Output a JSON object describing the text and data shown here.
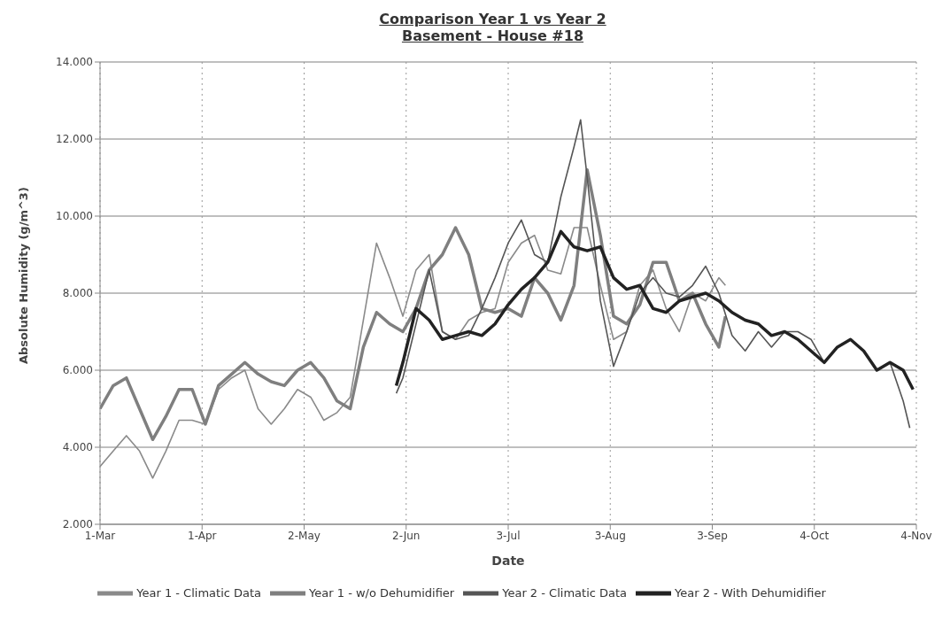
{
  "chart_data": {
    "type": "line",
    "title": "Comparison Year 1 vs Year 2",
    "subtitle": "Basement - House #18",
    "xlabel": "Date",
    "ylabel": "Absolute Humidity (g/m^3)",
    "xlim": [
      "--03-01",
      "--11-04"
    ],
    "xticks": [
      {
        "value": "--03-01",
        "label": "1-Mar"
      },
      {
        "value": "--04-01",
        "label": "1-Apr"
      },
      {
        "value": "--05-02",
        "label": "2-May"
      },
      {
        "value": "--06-02",
        "label": "2-Jun"
      },
      {
        "value": "--07-03",
        "label": "3-Jul"
      },
      {
        "value": "--08-03",
        "label": "3-Aug"
      },
      {
        "value": "--09-03",
        "label": "3-Sep"
      },
      {
        "value": "--10-04",
        "label": "4-Oct"
      },
      {
        "value": "--11-04",
        "label": "4-Nov"
      }
    ],
    "ylim": [
      2,
      14
    ],
    "yticks": [
      {
        "value": 2,
        "label": "2.000"
      },
      {
        "value": 4,
        "label": "4.000"
      },
      {
        "value": 6,
        "label": "6.000"
      },
      {
        "value": 8,
        "label": "8.000"
      },
      {
        "value": 10,
        "label": "10.000"
      },
      {
        "value": 12,
        "label": "12.000"
      },
      {
        "value": 14,
        "label": "14.000"
      }
    ],
    "grid": true,
    "legend": "bottom",
    "marker": "none",
    "line_style": "solid",
    "series": [
      {
        "name": "Year 1 - Climatic Data",
        "color": "#8a8a8a",
        "x": [
          "--03-01",
          "--03-05",
          "--03-09",
          "--03-13",
          "--03-17",
          "--03-21",
          "--03-25",
          "--03-29",
          "--04-02",
          "--04-06",
          "--04-10",
          "--04-14",
          "--04-18",
          "--04-22",
          "--04-26",
          "--04-30",
          "--05-04",
          "--05-08",
          "--05-12",
          "--05-16",
          "--05-20",
          "--05-24",
          "--05-28",
          "--06-01",
          "--06-05",
          "--06-09",
          "--06-13",
          "--06-17",
          "--06-21",
          "--06-25",
          "--06-29",
          "--07-03",
          "--07-07",
          "--07-11",
          "--07-15",
          "--07-19",
          "--07-23",
          "--07-27",
          "--07-31",
          "--08-04",
          "--08-08",
          "--08-12",
          "--08-16",
          "--08-20",
          "--08-24",
          "--08-28",
          "--09-01",
          "--09-05",
          "--09-07"
        ],
        "values": [
          3.5,
          3.9,
          4.3,
          3.9,
          3.2,
          3.9,
          4.7,
          4.7,
          4.6,
          5.5,
          5.8,
          6.0,
          5.0,
          4.6,
          5.0,
          5.5,
          5.3,
          4.7,
          4.9,
          5.3,
          7.3,
          9.3,
          8.4,
          7.4,
          8.6,
          9.0,
          7.0,
          6.8,
          7.3,
          7.5,
          7.6,
          8.8,
          9.3,
          9.5,
          8.6,
          8.5,
          9.7,
          9.7,
          8.2,
          6.8,
          7.0,
          8.2,
          8.6,
          7.6,
          7.0,
          8.0,
          7.8,
          8.4,
          8.2
        ]
      },
      {
        "name": "Year 1 - w/o Dehumidifier",
        "color": "#7f7f7f",
        "x": [
          "--03-01",
          "--03-05",
          "--03-09",
          "--03-13",
          "--03-17",
          "--03-21",
          "--03-25",
          "--03-29",
          "--04-02",
          "--04-06",
          "--04-10",
          "--04-14",
          "--04-18",
          "--04-22",
          "--04-26",
          "--04-30",
          "--05-04",
          "--05-08",
          "--05-12",
          "--05-16",
          "--05-20",
          "--05-24",
          "--05-28",
          "--06-01",
          "--06-05",
          "--06-09",
          "--06-13",
          "--06-17",
          "--06-21",
          "--06-25",
          "--06-29",
          "--07-03",
          "--07-07",
          "--07-11",
          "--07-15",
          "--07-19",
          "--07-23",
          "--07-27",
          "--07-31",
          "--08-04",
          "--08-08",
          "--08-12",
          "--08-16",
          "--08-20",
          "--08-24",
          "--08-28",
          "--09-01",
          "--09-05",
          "--09-07"
        ],
        "values": [
          5.0,
          5.6,
          5.8,
          5.0,
          4.2,
          4.8,
          5.5,
          5.5,
          4.6,
          5.6,
          5.9,
          6.2,
          5.9,
          5.7,
          5.6,
          6.0,
          6.2,
          5.8,
          5.2,
          5.0,
          6.6,
          7.5,
          7.2,
          7.0,
          7.6,
          8.6,
          9.0,
          9.7,
          9.0,
          7.6,
          7.5,
          7.6,
          7.4,
          8.4,
          8.0,
          7.3,
          8.2,
          11.2,
          9.5,
          7.4,
          7.2,
          7.7,
          8.8,
          8.8,
          7.8,
          8.0,
          7.2,
          6.6,
          7.4
        ]
      },
      {
        "name": "Year 2 - Climatic Data",
        "color": "#555555",
        "x": [
          "--05-30",
          "--06-01",
          "--06-05",
          "--06-09",
          "--06-13",
          "--06-17",
          "--06-21",
          "--06-25",
          "--06-29",
          "--07-03",
          "--07-07",
          "--07-11",
          "--07-15",
          "--07-19",
          "--07-23",
          "--07-25",
          "--07-27",
          "--07-31",
          "--08-04",
          "--08-08",
          "--08-12",
          "--08-16",
          "--08-20",
          "--08-24",
          "--08-28",
          "--09-01",
          "--09-05",
          "--09-09",
          "--09-13",
          "--09-17",
          "--09-21",
          "--09-25",
          "--09-29",
          "--10-03",
          "--10-07",
          "--10-11",
          "--10-15",
          "--10-19",
          "--10-23",
          "--10-27",
          "--10-31",
          "--11-02"
        ],
        "values": [
          5.4,
          5.8,
          7.2,
          8.6,
          7.0,
          6.8,
          6.9,
          7.6,
          8.4,
          9.3,
          9.9,
          9.0,
          8.8,
          10.5,
          11.8,
          12.5,
          11.0,
          7.8,
          6.1,
          7.0,
          8.0,
          8.4,
          8.0,
          7.9,
          8.2,
          8.7,
          8.0,
          6.9,
          6.5,
          7.0,
          6.6,
          7.0,
          7.0,
          6.8,
          6.2,
          6.6,
          6.8,
          6.5,
          6.0,
          6.2,
          5.2,
          4.5
        ]
      },
      {
        "name": "Year 2 - With Dehumidifier",
        "color": "#222222",
        "x": [
          "--05-30",
          "--06-01",
          "--06-05",
          "--06-09",
          "--06-13",
          "--06-17",
          "--06-21",
          "--06-25",
          "--06-29",
          "--07-03",
          "--07-07",
          "--07-11",
          "--07-15",
          "--07-19",
          "--07-23",
          "--07-27",
          "--07-31",
          "--08-04",
          "--08-08",
          "--08-12",
          "--08-16",
          "--08-20",
          "--08-24",
          "--08-28",
          "--09-01",
          "--09-05",
          "--09-09",
          "--09-13",
          "--09-17",
          "--09-21",
          "--09-25",
          "--09-29",
          "--10-03",
          "--10-07",
          "--10-11",
          "--10-15",
          "--10-19",
          "--10-23",
          "--10-27",
          "--10-31",
          "--11-03"
        ],
        "values": [
          5.6,
          6.2,
          7.6,
          7.3,
          6.8,
          6.9,
          7.0,
          6.9,
          7.2,
          7.7,
          8.1,
          8.4,
          8.8,
          9.6,
          9.2,
          9.1,
          9.2,
          8.4,
          8.1,
          8.2,
          7.6,
          7.5,
          7.8,
          7.9,
          8.0,
          7.8,
          7.5,
          7.3,
          7.2,
          6.9,
          7.0,
          6.8,
          6.5,
          6.2,
          6.6,
          6.8,
          6.5,
          6.0,
          6.2,
          6.0,
          5.5
        ]
      }
    ]
  }
}
